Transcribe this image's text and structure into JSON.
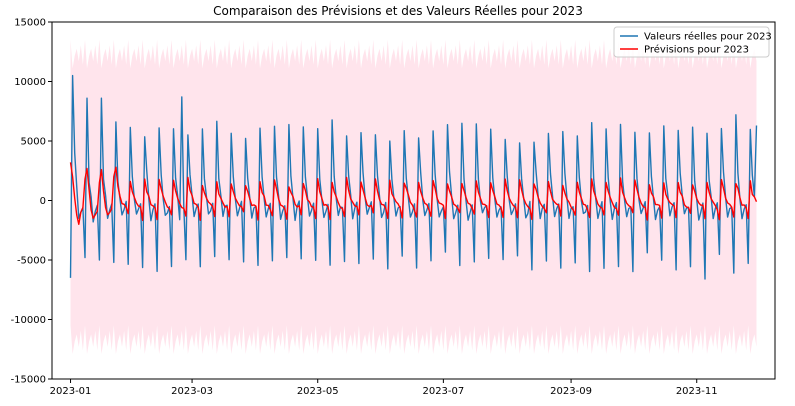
{
  "chart_data": {
    "type": "line",
    "title": "Comparaison des Prévisions et des Valeurs Réelles pour 2023",
    "xlabel": "",
    "ylabel": "",
    "x_start": "2023-01-01",
    "x_end": "2023-11-30",
    "xlim": [
      "2022-12-23",
      "2023-12-09"
    ],
    "ylim": [
      -15000,
      15000
    ],
    "x_ticks": [
      "2023-01",
      "2023-03",
      "2023-05",
      "2023-07",
      "2023-09",
      "2023-11"
    ],
    "y_ticks": [
      -15000,
      -10000,
      -5000,
      0,
      5000,
      10000,
      15000
    ],
    "grid": false,
    "legend_position": "top-right",
    "series": [
      {
        "name": "Valeurs réelles pour 2023",
        "color": "#1f77b4",
        "role": "actual",
        "period_days": 7,
        "weekly_pattern": [
          -5200,
          5800,
          2000,
          200,
          -1400,
          -800,
          -300
        ],
        "first_values": [
          -6500,
          10500,
          4000,
          1200,
          -1500,
          -1000,
          -600,
          -4800,
          8600,
          1500,
          300,
          -1800,
          -900,
          -400,
          -5000,
          8600,
          1800,
          400,
          -1500,
          -800,
          -300,
          -5200,
          6600,
          1600
        ],
        "notable_points": [
          [
            "2023-01-02",
            10500
          ],
          [
            "2023-01-01",
            -6500
          ],
          [
            "2023-02-24",
            8700
          ],
          [
            "2023-11-05",
            -6600
          ],
          [
            "2023-11-20",
            7200
          ],
          [
            "2023-11-30",
            6300
          ]
        ]
      },
      {
        "name": "Prévisions pour 2023",
        "color": "#ff0000",
        "role": "forecast",
        "period_days": 7,
        "weekly_pattern": [
          -1500,
          1800,
          900,
          300,
          -300,
          -500,
          -700
        ],
        "first_values": [
          3200,
          2000,
          200,
          -1200,
          -2000,
          -1000,
          -600,
          1800,
          2700,
          900,
          -800,
          -1500,
          -1200,
          -900,
          1500,
          2600,
          800,
          -600,
          -1200,
          -1000,
          -700,
          2000,
          2800,
          1200
        ],
        "notable_points": [
          [
            "2023-01-01",
            3200
          ],
          [
            "2023-11-30",
            -100
          ]
        ]
      }
    ],
    "confidence_band": {
      "color": "#ffe4ec",
      "upper_range": [
        10500,
        13500
      ],
      "lower_range": [
        -13500,
        -10500
      ],
      "period_days": 7
    }
  }
}
